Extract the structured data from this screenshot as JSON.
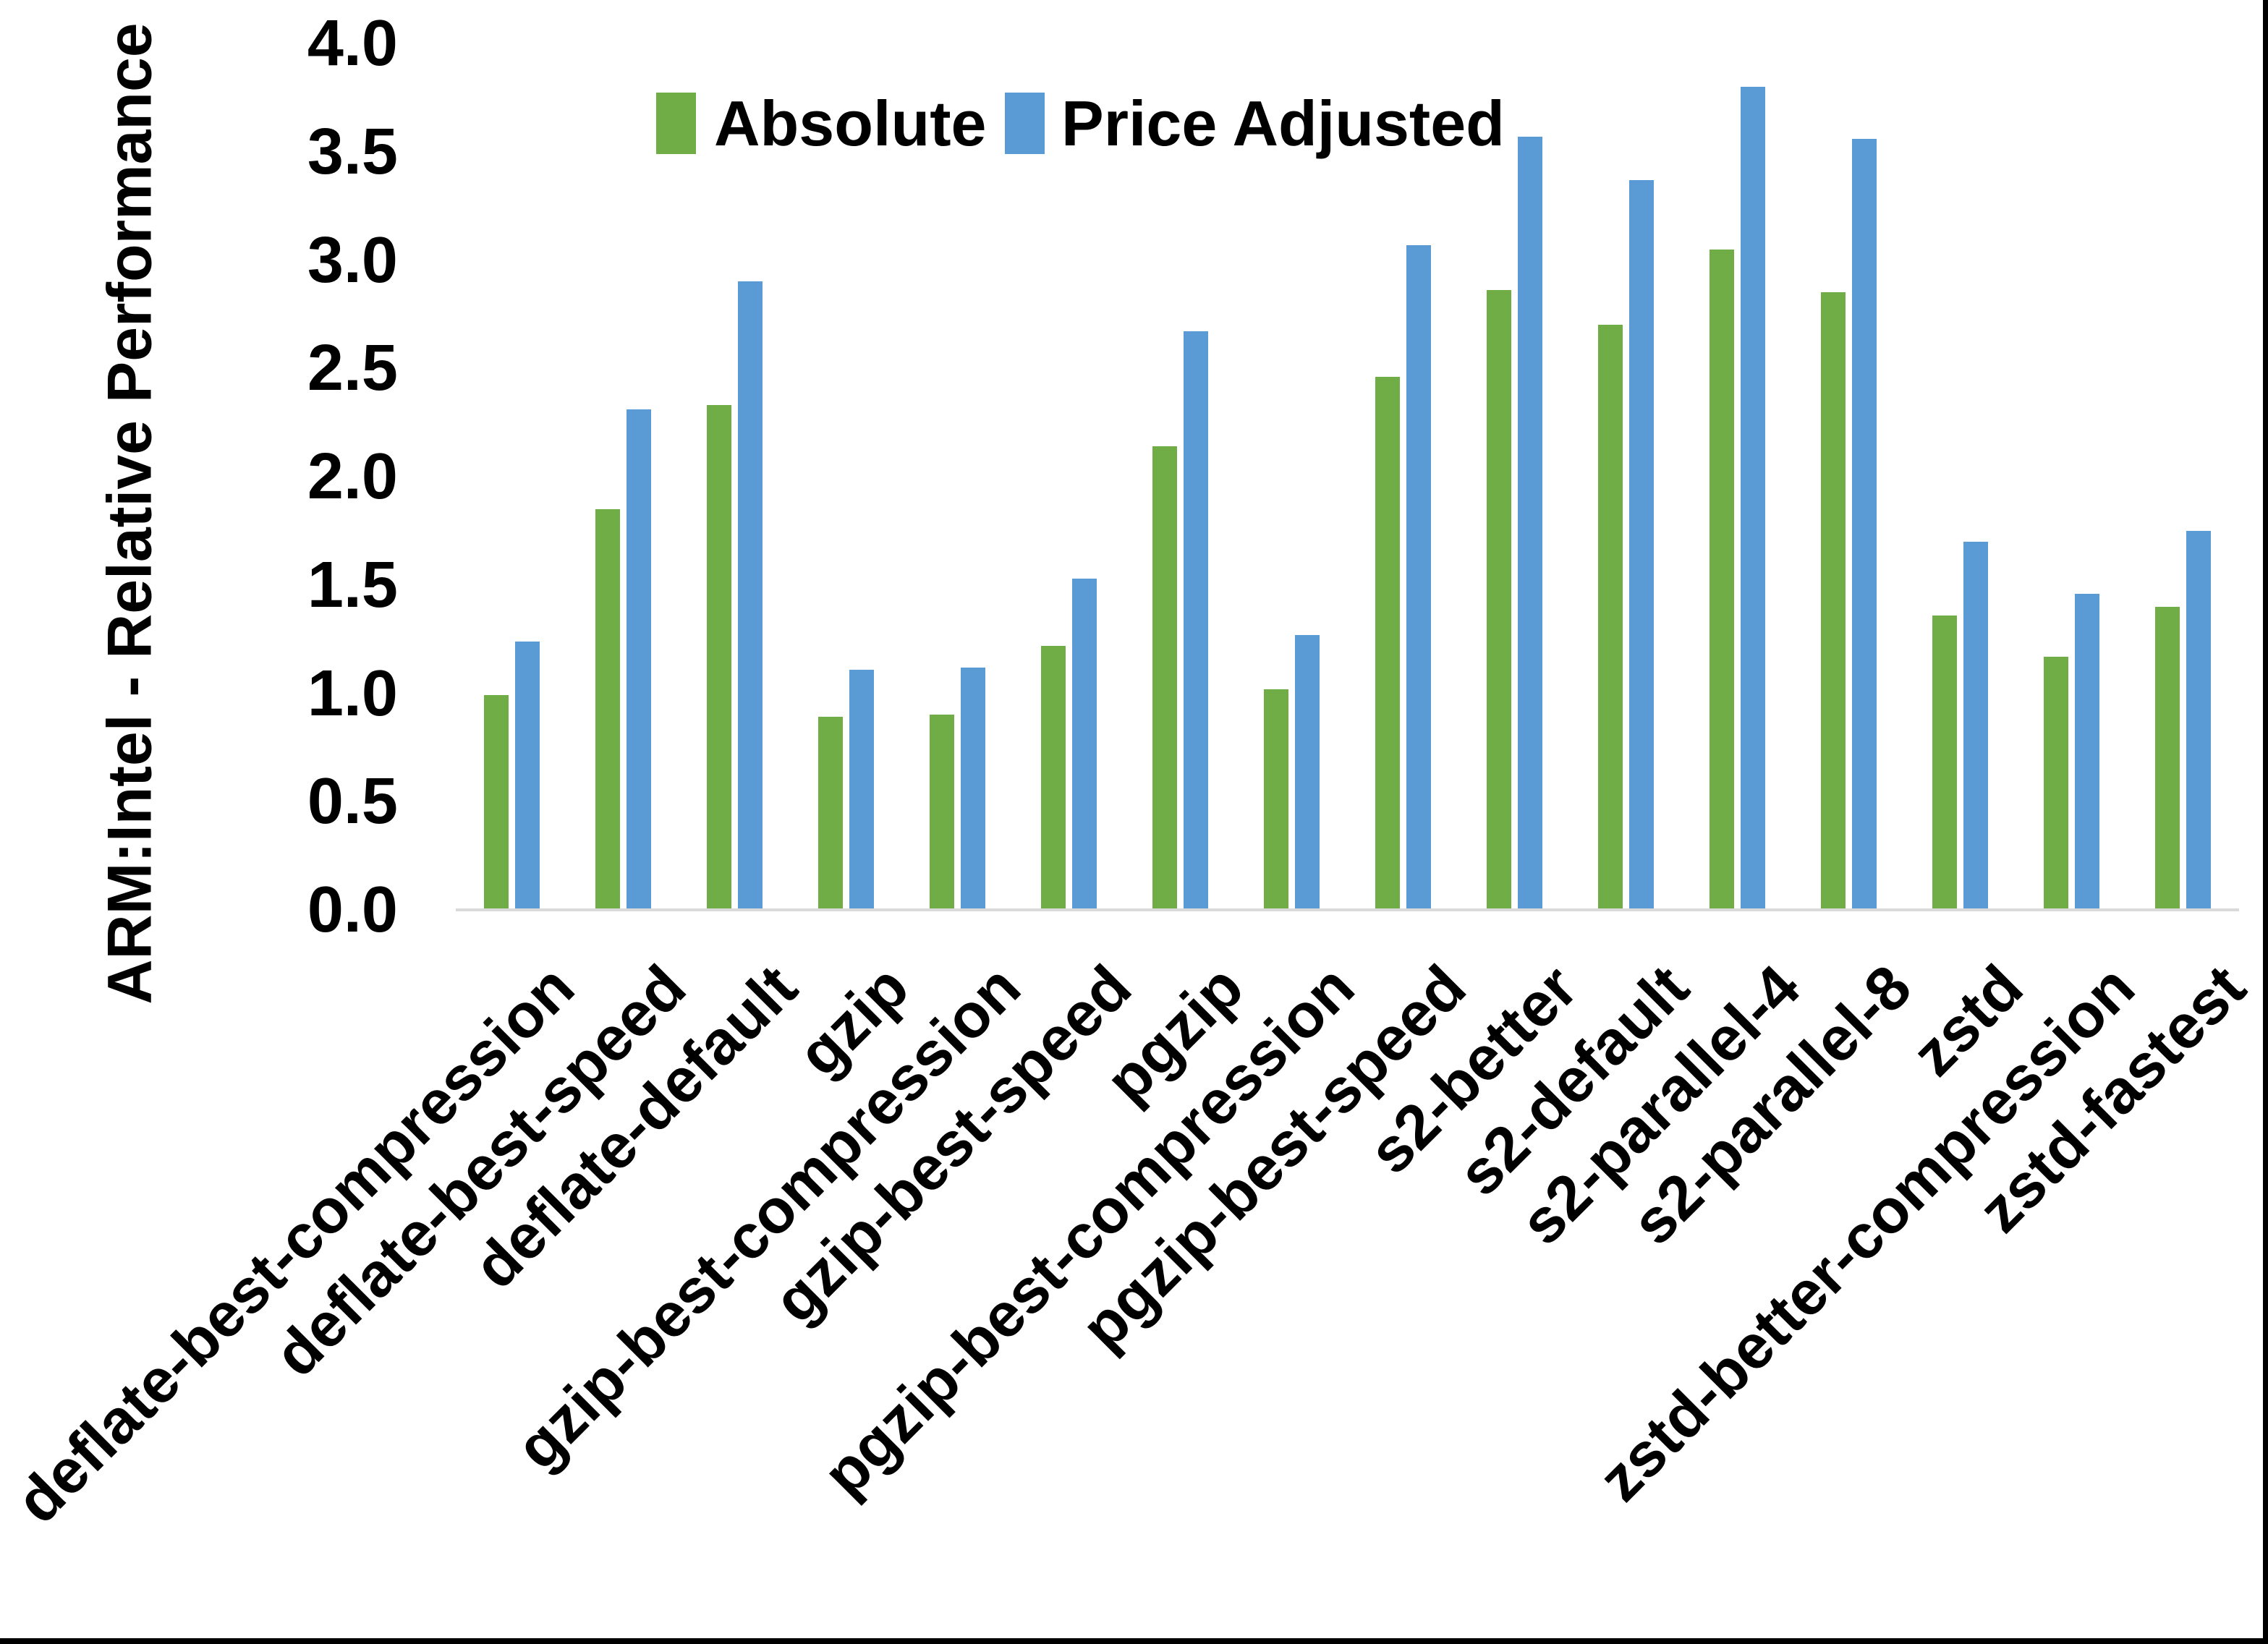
{
  "figure": {
    "background": "#FFFFFF",
    "border_color": "#000000"
  },
  "y_axis": {
    "title": "ARM:Intel - Relative Performance",
    "tick_labels": [
      "0.0",
      "0.5",
      "1.0",
      "1.5",
      "2.0",
      "2.5",
      "3.0",
      "3.5",
      "4.0"
    ],
    "axis_line_color": "#D9D9D9"
  },
  "legend": {
    "items": [
      {
        "label": "Absolute",
        "color": "#70AD47"
      },
      {
        "label": "Price Adjusted",
        "color": "#5B9BD5"
      }
    ]
  },
  "chart_data": {
    "type": "bar",
    "title": "",
    "xlabel": "",
    "ylabel": "ARM:Intel - Relative Performance",
    "ylim": [
      0.0,
      4.0
    ],
    "ytick_step": 0.5,
    "grid": false,
    "legend_position": "top",
    "categories": [
      "deflate-best-compression",
      "deflate-best-speed",
      "deflate-default",
      "gzip",
      "gzip-best-compression",
      "gzip-best-speed",
      "pgzip",
      "pgzip-best-compression",
      "pgzip-best-speed",
      "s2-better",
      "s2-default",
      "s2-parallel-4",
      "s2-parallel-8",
      "zstd",
      "zstd-better-compression",
      "zstd-fastest"
    ],
    "series": [
      {
        "name": "Absolute",
        "color": "#70AD47",
        "values": [
          0.99,
          1.85,
          2.33,
          0.89,
          0.9,
          1.22,
          2.14,
          1.02,
          2.46,
          2.86,
          2.7,
          3.05,
          2.85,
          1.36,
          1.17,
          1.4
        ]
      },
      {
        "name": "Price Adjusted",
        "color": "#5B9BD5",
        "values": [
          1.24,
          2.31,
          2.9,
          1.11,
          1.12,
          1.53,
          2.67,
          1.27,
          3.07,
          3.57,
          3.37,
          3.8,
          3.56,
          1.7,
          1.46,
          1.75
        ]
      }
    ]
  }
}
